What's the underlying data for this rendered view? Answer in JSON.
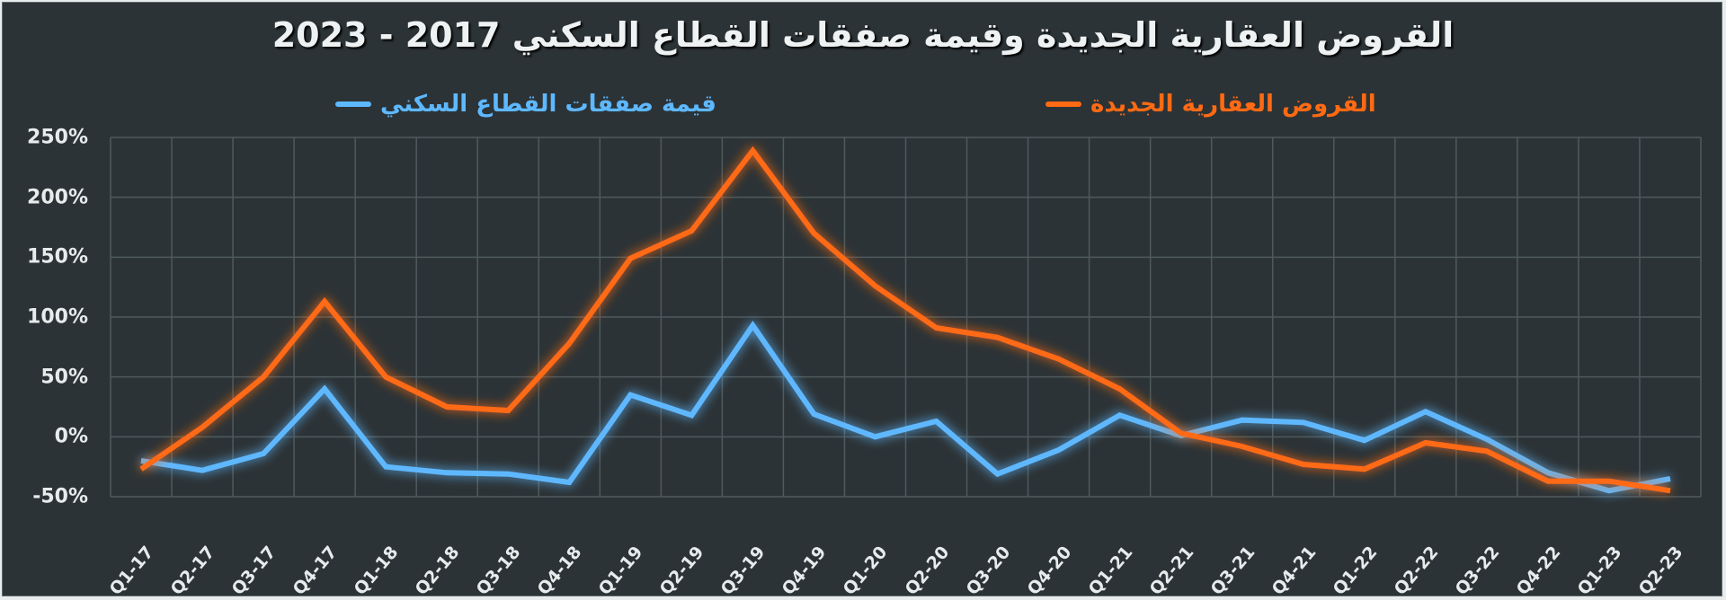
{
  "title": "القروض العقارية الجديدة وقيمة صفقات القطاع السكني 2017 - 2023",
  "legend": [
    {
      "label": "القروض العقارية الجديدة",
      "color": "#ff6a13"
    },
    {
      "label": "قيمة صفقات القطاع السكني",
      "color": "#5eb8ff"
    }
  ],
  "colors": {
    "background": "#2c3336",
    "grid": "#4f5a5d",
    "text": "#e6ebec"
  },
  "chart_data": {
    "type": "line",
    "title": "القروض العقارية الجديدة وقيمة صفقات القطاع السكني 2017 - 2023",
    "xlabel": "",
    "ylabel": "",
    "ylim": [
      -50,
      250
    ],
    "yticks": [
      "250%",
      "200%",
      "150%",
      "100%",
      "50%",
      "0%",
      "-50%"
    ],
    "grid": true,
    "legend_position": "top",
    "categories": [
      "Q1-17",
      "Q2-17",
      "Q3-17",
      "Q4-17",
      "Q1-18",
      "Q2-18",
      "Q3-18",
      "Q4-18",
      "Q1-19",
      "Q2-19",
      "Q3-19",
      "Q4-19",
      "Q1-20",
      "Q2-20",
      "Q3-20",
      "Q4-20",
      "Q1-21",
      "Q2-21",
      "Q3-21",
      "Q4-21",
      "Q1-22",
      "Q2-22",
      "Q3-22",
      "Q4-22",
      "Q1-23",
      "Q2-23"
    ],
    "series": [
      {
        "name": "القروض العقارية الجديدة",
        "color": "#ff6a13",
        "values": [
          -27,
          8,
          50,
          113,
          50,
          25,
          22,
          78,
          149,
          172,
          239,
          170,
          126,
          91,
          83,
          65,
          40,
          3,
          -8,
          -23,
          -27,
          -5,
          -12,
          -37,
          -37,
          -45
        ]
      },
      {
        "name": "قيمة صفقات القطاع السكني",
        "color": "#5eb8ff",
        "values": [
          -20,
          -28,
          -14,
          40,
          -25,
          -30,
          -31,
          -38,
          35,
          18,
          93,
          19,
          0,
          13,
          -31,
          -11,
          18,
          1,
          14,
          12,
          -3,
          21,
          -2,
          -30,
          -45,
          -35
        ]
      }
    ]
  }
}
